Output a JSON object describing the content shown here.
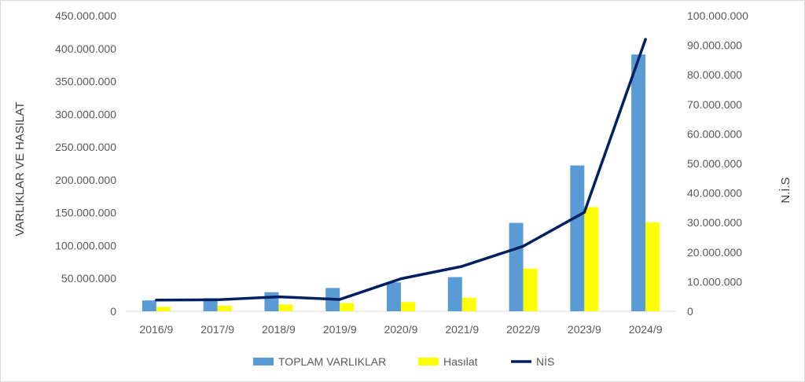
{
  "chart_data": {
    "type": "bar",
    "categories": [
      "2016/9",
      "2017/9",
      "2018/9",
      "2019/9",
      "2020/9",
      "2021/9",
      "2022/9",
      "2023/9",
      "2024/9"
    ],
    "series": [
      {
        "name": "TOPLAM VARLIKLAR",
        "type": "bar",
        "axis": "left",
        "color": "#5b9bd5",
        "values": [
          16500000,
          20000000,
          29000000,
          35500000,
          44000000,
          52000000,
          134500000,
          222000000,
          391000000
        ]
      },
      {
        "name": "Hasılat",
        "type": "bar",
        "axis": "left",
        "color": "#ffff00",
        "values": [
          6500000,
          8500000,
          10500000,
          12500000,
          14000000,
          20500000,
          65000000,
          158500000,
          135500000
        ]
      },
      {
        "name": "NİS",
        "type": "line",
        "axis": "right",
        "color": "#002060",
        "values": [
          3800000,
          3900000,
          4900000,
          4000000,
          11000000,
          15200000,
          22000000,
          33500000,
          92000000
        ]
      }
    ],
    "ylabel": "VARLIKLAR VE HASILAT",
    "y2label": "N.İ.S",
    "ylim": [
      0,
      450000000
    ],
    "y2lim": [
      0,
      100000000
    ],
    "yticks": [
      "0",
      "50.000.000",
      "100.000.000",
      "150.000.000",
      "200.000.000",
      "250.000.000",
      "300.000.000",
      "350.000.000",
      "400.000.000",
      "450.000.000"
    ],
    "y2ticks": [
      "0",
      "10.000.000",
      "20.000.000",
      "30.000.000",
      "40.000.000",
      "50.000.000",
      "60.000.000",
      "70.000.000",
      "80.000.000",
      "90.000.000",
      "100.000.000"
    ],
    "grid": false,
    "legend": "bottom"
  }
}
